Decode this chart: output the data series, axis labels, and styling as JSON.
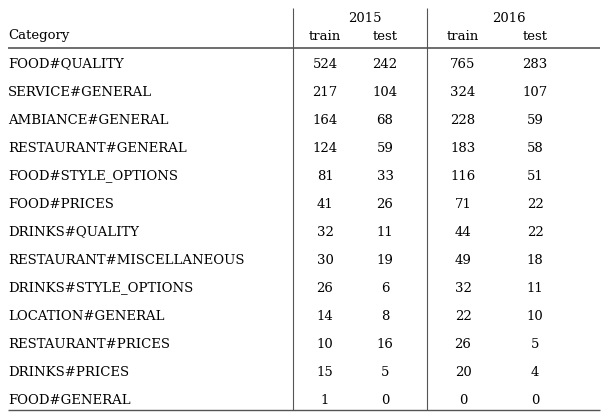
{
  "categories": [
    "FOOD#QUALITY",
    "SERVICE#GENERAL",
    "AMBIANCE#GENERAL",
    "RESTAURANT#GENERAL",
    "FOOD#STYLE_OPTIONS",
    "FOOD#PRICES",
    "DRINKS#QUALITY",
    "RESTAURANT#MISCELLANEOUS",
    "DRINKS#STYLE_OPTIONS",
    "LOCATION#GENERAL",
    "RESTAURANT#PRICES",
    "DRINKS#PRICES",
    "FOOD#GENERAL"
  ],
  "data_2015_train": [
    524,
    217,
    164,
    124,
    81,
    41,
    32,
    30,
    26,
    14,
    10,
    15,
    1
  ],
  "data_2015_test": [
    242,
    104,
    68,
    59,
    33,
    26,
    11,
    19,
    6,
    8,
    16,
    5,
    0
  ],
  "data_2016_train": [
    765,
    324,
    228,
    183,
    116,
    71,
    44,
    49,
    32,
    22,
    26,
    20,
    0
  ],
  "data_2016_test": [
    283,
    107,
    59,
    58,
    51,
    22,
    22,
    18,
    11,
    10,
    5,
    4,
    0
  ],
  "col_header_year_2015": "2015",
  "col_header_year_2016": "2016",
  "col_header_train": "train",
  "col_header_test": "test",
  "row_header": "Category",
  "bg_color": "#ffffff",
  "text_color": "#000000",
  "font_size": 9.5,
  "header_font_size": 9.5
}
